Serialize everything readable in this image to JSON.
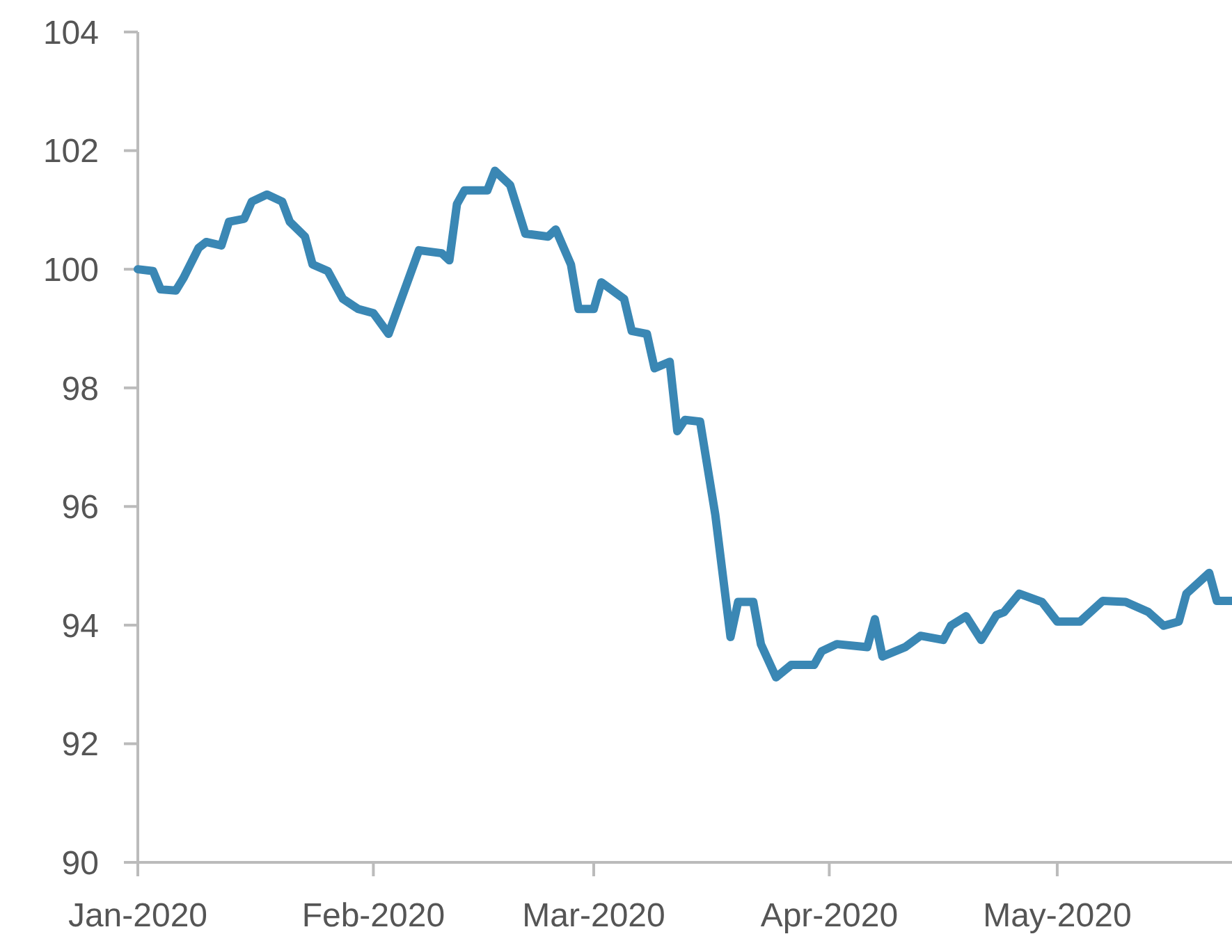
{
  "chart_data": {
    "type": "line",
    "x": [
      "2020-01-01",
      "2020-01-03",
      "2020-01-04",
      "2020-01-06",
      "2020-01-07",
      "2020-01-09",
      "2020-01-10",
      "2020-01-12",
      "2020-01-13",
      "2020-01-15",
      "2020-01-16",
      "2020-01-18",
      "2020-01-20",
      "2020-01-21",
      "2020-01-23",
      "2020-01-24",
      "2020-01-26",
      "2020-01-28",
      "2020-01-30",
      "2020-02-01",
      "2020-02-03",
      "2020-02-07",
      "2020-02-10",
      "2020-02-11",
      "2020-02-12",
      "2020-02-13",
      "2020-02-16",
      "2020-02-17",
      "2020-02-19",
      "2020-02-21",
      "2020-02-24",
      "2020-02-25",
      "2020-02-27",
      "2020-02-28",
      "2020-03-01",
      "2020-03-02",
      "2020-03-05",
      "2020-03-06",
      "2020-03-08",
      "2020-03-09",
      "2020-03-11",
      "2020-03-12",
      "2020-03-13",
      "2020-03-15",
      "2020-03-17",
      "2020-03-19",
      "2020-03-20",
      "2020-03-22",
      "2020-03-23",
      "2020-03-25",
      "2020-03-27",
      "2020-03-30",
      "2020-03-31",
      "2020-04-02",
      "2020-04-06",
      "2020-04-07",
      "2020-04-08",
      "2020-04-11",
      "2020-04-13",
      "2020-04-16",
      "2020-04-17",
      "2020-04-19",
      "2020-04-21",
      "2020-04-23",
      "2020-04-24",
      "2020-04-26",
      "2020-04-29",
      "2020-05-01",
      "2020-05-04",
      "2020-05-07",
      "2020-05-10",
      "2020-05-13",
      "2020-05-15",
      "2020-05-17",
      "2020-05-18",
      "2020-05-21",
      "2020-05-22",
      "2020-05-24"
    ],
    "series": [
      {
        "color": "#3a87b4",
        "values": [
          100.0,
          99.97,
          99.66,
          99.64,
          99.85,
          100.36,
          100.46,
          100.4,
          100.8,
          100.85,
          101.14,
          101.26,
          101.14,
          100.8,
          100.55,
          100.08,
          99.97,
          99.5,
          99.33,
          99.26,
          98.91,
          100.32,
          100.27,
          100.15,
          101.1,
          101.33,
          101.33,
          101.66,
          101.42,
          100.6,
          100.55,
          100.67,
          100.08,
          99.33,
          99.33,
          99.78,
          99.5,
          98.96,
          98.91,
          98.33,
          98.44,
          97.27,
          97.46,
          97.43,
          95.86,
          93.8,
          94.39,
          94.39,
          93.68,
          93.12,
          93.33,
          93.33,
          93.56,
          93.68,
          93.63,
          94.1,
          93.47,
          93.63,
          93.82,
          93.75,
          93.99,
          94.15,
          93.75,
          94.17,
          94.22,
          94.53,
          94.39,
          94.06,
          94.06,
          94.41,
          94.39,
          94.22,
          93.99,
          94.06,
          94.53,
          94.88,
          94.41,
          94.41
        ]
      }
    ],
    "xlim": [
      "2020-01-01",
      "2020-05-24"
    ],
    "xticks": [
      {
        "value": "2020-01-01",
        "label": "Jan-2020"
      },
      {
        "value": "2020-02-01",
        "label": "Feb-2020"
      },
      {
        "value": "2020-03-01",
        "label": "Mar-2020"
      },
      {
        "value": "2020-04-01",
        "label": "Apr-2020"
      },
      {
        "value": "2020-05-01",
        "label": "May-2020"
      }
    ],
    "ylim": [
      90,
      104
    ],
    "yticks": [
      90,
      92,
      94,
      96,
      98,
      100,
      102,
      104
    ],
    "grid": false,
    "marker": "none",
    "line_style": "solid"
  }
}
